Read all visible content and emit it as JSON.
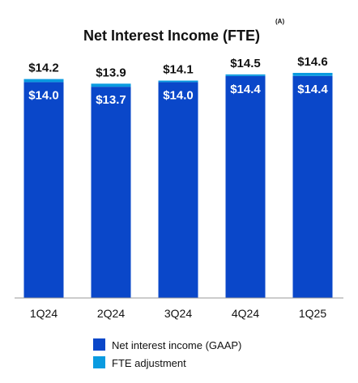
{
  "chart_data": {
    "type": "bar",
    "stacked": true,
    "title": "Net Interest Income (FTE)",
    "title_superscript": "(A)",
    "categories": [
      "1Q24",
      "2Q24",
      "3Q24",
      "4Q24",
      "1Q25"
    ],
    "series": [
      {
        "name": "Net interest income (GAAP)",
        "values": [
          14.0,
          13.7,
          14.0,
          14.4,
          14.4
        ],
        "value_labels": [
          "$14.0",
          "$13.7",
          "$14.0",
          "$14.4",
          "$14.4"
        ],
        "color": "#0A47C9"
      },
      {
        "name": "FTE adjustment",
        "values": [
          0.2,
          0.2,
          0.1,
          0.1,
          0.2
        ],
        "color": "#0A9BE0"
      }
    ],
    "totals": [
      14.2,
      13.9,
      14.1,
      14.5,
      14.6
    ],
    "total_labels": [
      "$14.2",
      "$13.9",
      "$14.1",
      "$14.5",
      "$14.6"
    ],
    "ylim": [
      0,
      14.6
    ],
    "xlabel": "",
    "ylabel": "",
    "grid": false,
    "legend_position": "bottom-left"
  },
  "colors": {
    "gaap": "#0A47C9",
    "fte": "#0A9BE0",
    "axis": "#9a9a9a",
    "text": "#111111"
  }
}
